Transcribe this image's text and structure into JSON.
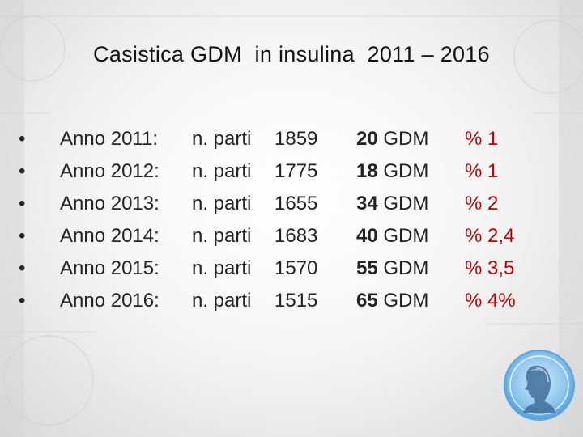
{
  "slide": {
    "title": "Casistica GDM  in insulina  2011 – 2016",
    "bullet_char": "•",
    "rows": [
      {
        "year": "Anno 2011:",
        "parti_label": "n. parti",
        "parti": "1859",
        "gdm_count": "20",
        "gdm_label": " GDM",
        "percent": "% 1"
      },
      {
        "year": "Anno 2012:",
        "parti_label": "n. parti",
        "parti": "1775",
        "gdm_count": "18",
        "gdm_label": " GDM",
        "percent": "% 1"
      },
      {
        "year": "Anno 2013:",
        "parti_label": "n. parti",
        "parti": "1655",
        "gdm_count": "34",
        "gdm_label": " GDM",
        "percent": "% 2"
      },
      {
        "year": "Anno 2014:",
        "parti_label": "n. parti",
        "parti": "1683",
        "gdm_count": "40",
        "gdm_label": " GDM",
        "percent": "% 2,4"
      },
      {
        "year": "Anno 2015:",
        "parti_label": "n. parti",
        "parti": "1570",
        "gdm_count": "55",
        "gdm_label": " GDM",
        "percent": "% 3,5"
      },
      {
        "year": "Anno 2016:",
        "parti_label": "n. parti",
        "parti": "1515",
        "gdm_count": "65",
        "gdm_label": " GDM",
        "percent": "% 4%"
      }
    ]
  },
  "colors": {
    "text": "#222222",
    "percent": "#c00000",
    "logo_blue": "#6fb3e6"
  },
  "icons": {
    "logo": "portrait-medallion-logo"
  }
}
